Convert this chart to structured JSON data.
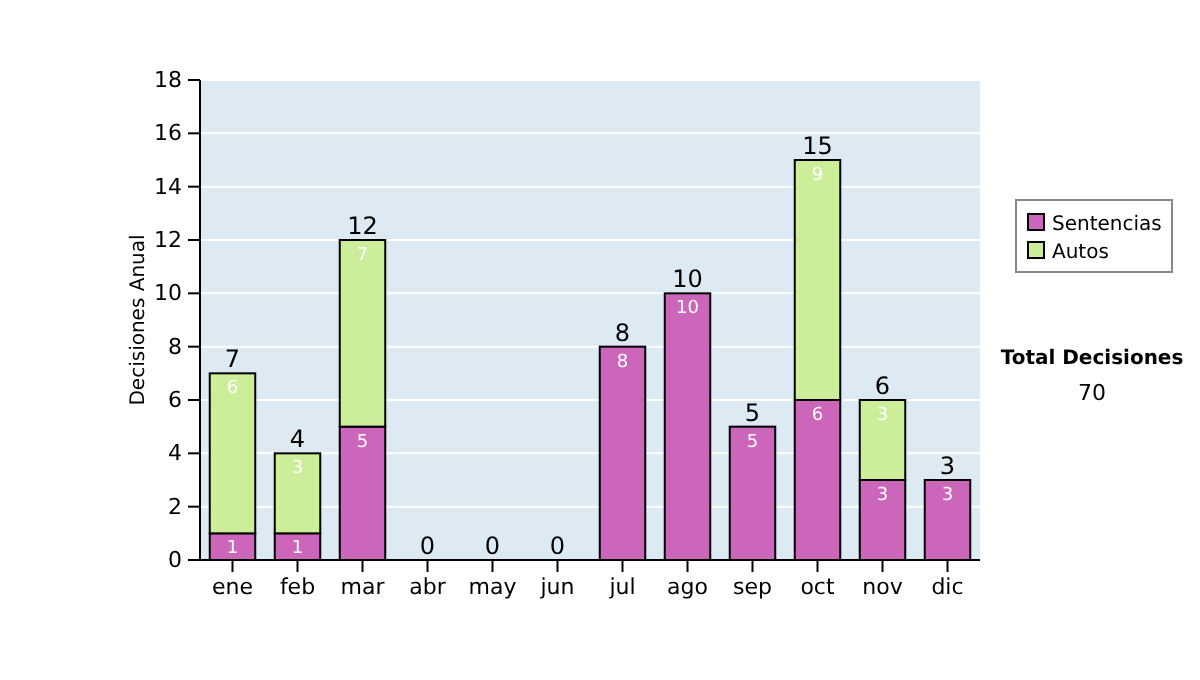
{
  "chart_data": {
    "type": "bar",
    "stacked": true,
    "ylabel": "Decisiones Anual",
    "categories": [
      "ene",
      "feb",
      "mar",
      "abr",
      "may",
      "jun",
      "jul",
      "ago",
      "sep",
      "oct",
      "nov",
      "dic"
    ],
    "series": [
      {
        "name": "Sentencias",
        "color": "#cc66bb",
        "values": [
          1,
          1,
          5,
          0,
          0,
          0,
          8,
          10,
          5,
          6,
          3,
          3
        ],
        "value_labels": [
          "1",
          "1",
          "5",
          null,
          null,
          null,
          "8",
          "10",
          "5",
          "6",
          "3",
          "3"
        ]
      },
      {
        "name": "Autos",
        "color": "#ccee99",
        "values": [
          6,
          3,
          7,
          0,
          0,
          0,
          0,
          0,
          0,
          9,
          3,
          0
        ],
        "value_labels": [
          "6",
          "3",
          "7",
          null,
          null,
          null,
          null,
          null,
          null,
          "9",
          "3",
          null
        ]
      }
    ],
    "totals": [
      "7",
      "4",
      "12",
      "0",
      "0",
      "0",
      "8",
      "10",
      "5",
      "15",
      "6",
      "3"
    ],
    "ylim": [
      0,
      18
    ],
    "yticks": [
      0,
      2,
      4,
      6,
      8,
      10,
      12,
      14,
      16,
      18
    ],
    "grid": "y",
    "legend": "right",
    "annotations": [
      "Total Decisiones",
      "70"
    ]
  }
}
